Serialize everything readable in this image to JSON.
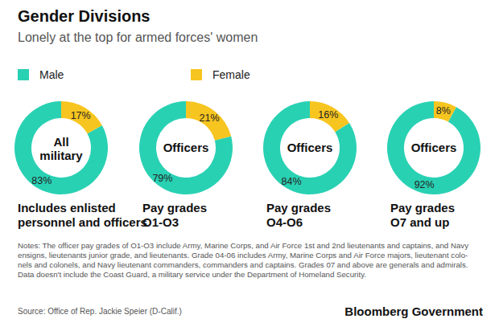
{
  "title": "Gender Divisions",
  "subtitle": "Lonely at the top for armed forces' women",
  "chart_data": [
    {
      "type": "pie",
      "center_label": [
        "All",
        "military"
      ],
      "caption": [
        "Includes enlisted",
        "personnel and officers"
      ],
      "categories": [
        "Male",
        "Female"
      ],
      "values": [
        83,
        17
      ],
      "value_labels": [
        "83%",
        "17%"
      ],
      "colors": [
        "#29d1b3",
        "#f7c520"
      ],
      "data_labels": true
    },
    {
      "type": "pie",
      "center_label": [
        "Officers"
      ],
      "caption": [
        "Pay grades",
        "O1-O3"
      ],
      "categories": [
        "Male",
        "Female"
      ],
      "values": [
        79,
        21
      ],
      "value_labels": [
        "79%",
        "21%"
      ],
      "colors": [
        "#29d1b3",
        "#f7c520"
      ],
      "data_labels": true
    },
    {
      "type": "pie",
      "center_label": [
        "Officers"
      ],
      "caption": [
        "Pay grades",
        "O4-O6"
      ],
      "categories": [
        "Male",
        "Female"
      ],
      "values": [
        84,
        16
      ],
      "value_labels": [
        "84%",
        "16%"
      ],
      "colors": [
        "#29d1b3",
        "#f7c520"
      ],
      "data_labels": true
    },
    {
      "type": "pie",
      "center_label": [
        "Officers"
      ],
      "caption": [
        "Pay grades",
        "O7 and up"
      ],
      "categories": [
        "Male",
        "Female"
      ],
      "values": [
        92,
        8
      ],
      "value_labels": [
        "92%",
        "8%"
      ],
      "colors": [
        "#29d1b3",
        "#f7c520"
      ],
      "data_labels": true
    }
  ],
  "notes": [
    "Notes: The officer pay grades of O1-O3 include Army, Marine Corps, and Air Force 1st and 2nd lieutenants and captains, and Navy",
    "ensigns, lieutenants junior grade, and lieutenants. Grade 04-06 includes Army, Marine Corps and Air Force majors, lieutenant colo-",
    "nels and colonels, and Navy lieutenant commanders, commanders and captains. Grades 07 and above are generals and admirals.",
    "Data doesn't include the Coast Guard, a military service under the Department of Homeland Security."
  ],
  "source": "Source: Office of Rep. Jackie Speier (D-Calif.)",
  "credit": "Bloomberg Government"
}
